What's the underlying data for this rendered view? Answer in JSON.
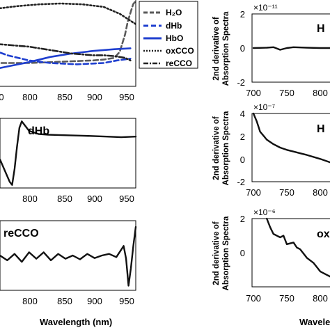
{
  "chart_data": [
    {
      "id": "spectra",
      "type": "line",
      "xlim": [
        680,
        960
      ],
      "xticks": [
        "800",
        "850",
        "900",
        "950"
      ],
      "partial_ticks": [
        "0"
      ],
      "legend": {
        "placement": "right-outside",
        "entries": [
          "H₂O",
          "dHb",
          "HbO",
          "oxCCO",
          "reCCO"
        ]
      },
      "series": [
        {
          "name": "H₂O",
          "color": "#5a5a5a",
          "style": "dash",
          "x": [
            680,
            720,
            760,
            800,
            840,
            880,
            900,
            920,
            930,
            940,
            945,
            950,
            955,
            960
          ],
          "y": [
            0.27,
            0.27,
            0.27,
            0.28,
            0.29,
            0.3,
            0.31,
            0.33,
            0.4,
            0.6,
            0.75,
            0.85,
            0.95,
            0.99
          ]
        },
        {
          "name": "dHb",
          "color": "#1f3fcf",
          "style": "dash",
          "x": [
            680,
            720,
            760,
            800,
            850,
            900,
            925,
            950
          ],
          "y": [
            0.45,
            0.36,
            0.3,
            0.27,
            0.255,
            0.27,
            0.3,
            0.32
          ]
        },
        {
          "name": "HbO",
          "color": "#1f3fcf",
          "style": "solid",
          "x": [
            680,
            720,
            760,
            800,
            840,
            880,
            920,
            950
          ],
          "y": [
            0.18,
            0.23,
            0.28,
            0.34,
            0.38,
            0.41,
            0.43,
            0.44
          ]
        },
        {
          "name": "oxCCO",
          "color": "#222222",
          "style": "dot",
          "x": [
            680,
            700,
            740,
            780,
            820,
            860,
            900,
            930,
            960
          ],
          "y": [
            0.88,
            0.9,
            0.93,
            0.95,
            0.96,
            0.95,
            0.92,
            0.84,
            0.72
          ]
        },
        {
          "name": "reCCO",
          "color": "#222222",
          "style": "dashdot",
          "x": [
            680,
            720,
            760,
            800,
            840,
            880,
            900,
            920,
            940,
            950
          ],
          "y": [
            0.5,
            0.48,
            0.46,
            0.42,
            0.38,
            0.36,
            0.36,
            0.35,
            0.33,
            0.3
          ]
        }
      ]
    },
    {
      "id": "dhb-deriv",
      "type": "line",
      "label": "dHb",
      "xlim": [
        680,
        960
      ],
      "xticks": [
        "800",
        "850",
        "900",
        "950"
      ],
      "series": [
        {
          "name": "dHb",
          "color": "#111111",
          "x": [
            680,
            700,
            705,
            710,
            715,
            720,
            725,
            730,
            740,
            760,
            780,
            800,
            850,
            900,
            930,
            960
          ],
          "y": [
            -0.2,
            -0.9,
            -1.0,
            -0.5,
            0.2,
            0.8,
            1.0,
            0.9,
            0.7,
            0.6,
            0.58,
            0.57,
            0.55,
            0.52,
            0.5,
            0.52
          ]
        }
      ]
    },
    {
      "id": "recco-deriv",
      "type": "line",
      "label": "reCCO",
      "xlim": [
        680,
        960
      ],
      "xticks": [
        "800",
        "850",
        "900",
        "950"
      ],
      "xlabel": "Wavelength (nm)",
      "series": [
        {
          "name": "reCCO",
          "color": "#111111",
          "x": [
            680,
            695,
            710,
            725,
            740,
            755,
            770,
            785,
            800,
            815,
            830,
            845,
            860,
            875,
            890,
            905,
            920,
            935,
            940,
            945,
            950,
            955,
            960
          ],
          "y": [
            0.0,
            -0.15,
            0.05,
            -0.2,
            0.1,
            -0.1,
            0.1,
            -0.15,
            0.05,
            -0.1,
            0.0,
            -0.12,
            0.05,
            -0.08,
            0.0,
            0.05,
            -0.05,
            0.3,
            -0.1,
            -0.95,
            -0.4,
            0.3,
            0.9
          ]
        }
      ]
    },
    {
      "id": "h2o-2nd",
      "type": "line",
      "label": "H",
      "ylabel_line1": "2nd derivative of",
      "ylabel_line2": "Absorption Spectra",
      "exponent": "×10⁻¹¹",
      "xlim": [
        700,
        900
      ],
      "ylim": [
        -2,
        2
      ],
      "xticks": [
        "700",
        "750",
        "800"
      ],
      "yticks": [
        "2",
        "0",
        "-2"
      ],
      "series": [
        {
          "name": "H₂O",
          "color": "#111111",
          "x": [
            700,
            720,
            730,
            740,
            750,
            760,
            780,
            800,
            820
          ],
          "y": [
            0.0,
            0.02,
            0.05,
            -0.1,
            0.0,
            0.05,
            0.02,
            0.0,
            0.0
          ]
        }
      ]
    },
    {
      "id": "hbo-2nd",
      "type": "line",
      "label": "H",
      "ylabel_line1": "2nd derivative of",
      "ylabel_line2": "Absorption Spectra",
      "exponent": "×10⁻⁷",
      "xlim": [
        700,
        900
      ],
      "ylim": [
        -2,
        4
      ],
      "xticks": [
        "700",
        "750",
        "800"
      ],
      "yticks": [
        "4",
        "2",
        "0",
        "-2"
      ],
      "series": [
        {
          "name": "HbO",
          "color": "#111111",
          "x": [
            700,
            705,
            710,
            720,
            730,
            740,
            750,
            760,
            770,
            780,
            800,
            820
          ],
          "y": [
            4.0,
            3.3,
            2.4,
            1.7,
            1.3,
            1.0,
            0.8,
            0.65,
            0.5,
            0.35,
            0.0,
            -0.4
          ]
        }
      ]
    },
    {
      "id": "oxcco-2nd",
      "type": "line",
      "label": "ox",
      "ylabel_line1": "2nd derivative of",
      "ylabel_line2": "Absorption Spectra",
      "exponent": "×10⁻⁶",
      "xlim": [
        700,
        900
      ],
      "ylim": [
        -2,
        2
      ],
      "xticks": [
        "700",
        "750",
        "800"
      ],
      "yticks": [
        "2",
        "0"
      ],
      "xlabel": "Wavele",
      "series": [
        {
          "name": "oxCCO",
          "color": "#111111",
          "x": [
            720,
            725,
            730,
            740,
            745,
            750,
            760,
            765,
            770,
            780,
            790,
            800,
            810,
            820
          ],
          "y": [
            2.0,
            1.5,
            1.1,
            0.9,
            1.0,
            0.5,
            0.6,
            0.3,
            0.2,
            -0.3,
            -0.6,
            -1.1,
            -1.3,
            -1.5
          ]
        }
      ]
    }
  ]
}
